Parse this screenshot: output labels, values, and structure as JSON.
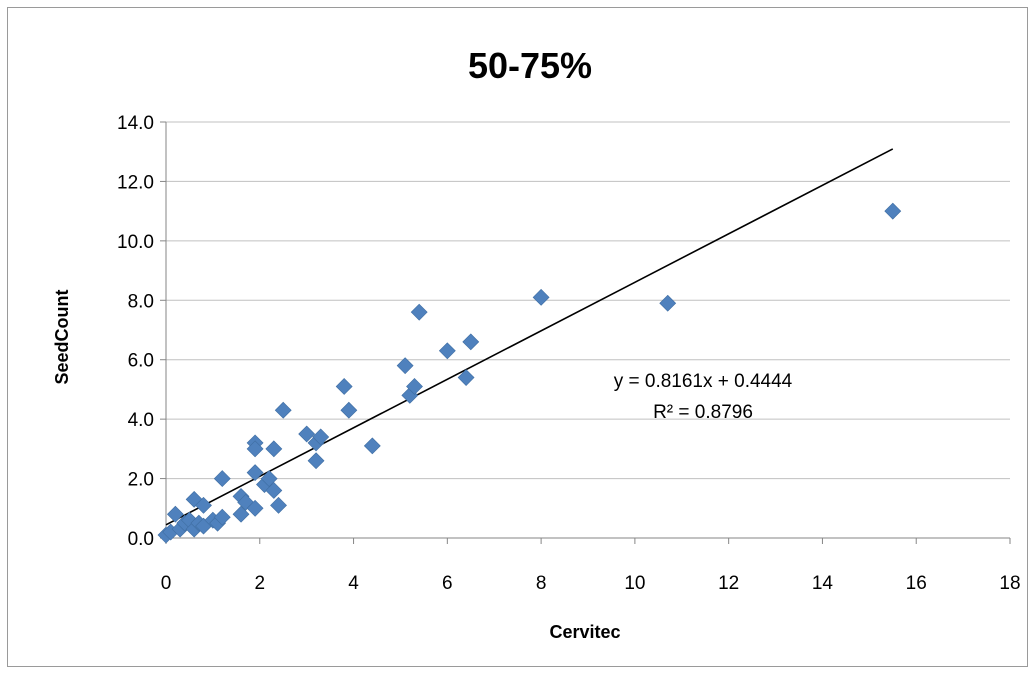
{
  "chart_data": {
    "type": "scatter",
    "title": "50-75%",
    "xlabel": "Cervitec",
    "ylabel": "SeedCount",
    "xlim": [
      0,
      18
    ],
    "ylim": [
      0,
      14
    ],
    "x_ticks": [
      "0",
      "2",
      "4",
      "6",
      "8",
      "10",
      "12",
      "14",
      "16",
      "18"
    ],
    "y_ticks": [
      "0.0",
      "2.0",
      "4.0",
      "6.0",
      "8.0",
      "10.0",
      "12.0",
      "14.0"
    ],
    "grid": "horizontal",
    "legend": "none",
    "marker_color": "#4F81BD",
    "trendline": {
      "slope": 0.8161,
      "intercept": 0.4444,
      "x_range": [
        0,
        15.5
      ],
      "equation": "y = 0.8161x + 0.4444",
      "r_squared": "R² = 0.8796"
    },
    "points": [
      [
        0.0,
        0.1
      ],
      [
        0.1,
        0.2
      ],
      [
        0.2,
        0.8
      ],
      [
        0.3,
        0.3
      ],
      [
        0.4,
        0.5
      ],
      [
        0.5,
        0.6
      ],
      [
        0.6,
        0.3
      ],
      [
        0.6,
        1.3
      ],
      [
        0.7,
        0.5
      ],
      [
        0.8,
        1.1
      ],
      [
        0.8,
        0.4
      ],
      [
        1.0,
        0.6
      ],
      [
        1.1,
        0.5
      ],
      [
        1.2,
        2.0
      ],
      [
        1.2,
        0.7
      ],
      [
        1.6,
        1.4
      ],
      [
        1.6,
        0.8
      ],
      [
        1.7,
        1.2
      ],
      [
        1.9,
        3.2
      ],
      [
        1.9,
        3.0
      ],
      [
        1.9,
        2.2
      ],
      [
        1.9,
        1.0
      ],
      [
        2.1,
        1.8
      ],
      [
        2.2,
        2.0
      ],
      [
        2.3,
        3.0
      ],
      [
        2.3,
        1.6
      ],
      [
        2.4,
        1.1
      ],
      [
        2.5,
        4.3
      ],
      [
        3.0,
        3.5
      ],
      [
        3.2,
        2.6
      ],
      [
        3.2,
        3.2
      ],
      [
        3.3,
        3.4
      ],
      [
        3.8,
        5.1
      ],
      [
        3.9,
        4.3
      ],
      [
        4.4,
        3.1
      ],
      [
        5.1,
        5.8
      ],
      [
        5.2,
        4.8
      ],
      [
        5.3,
        5.1
      ],
      [
        5.4,
        7.6
      ],
      [
        6.0,
        6.3
      ],
      [
        6.4,
        5.4
      ],
      [
        6.5,
        6.6
      ],
      [
        8.0,
        8.1
      ],
      [
        10.7,
        7.9
      ],
      [
        15.5,
        11.0
      ]
    ]
  }
}
